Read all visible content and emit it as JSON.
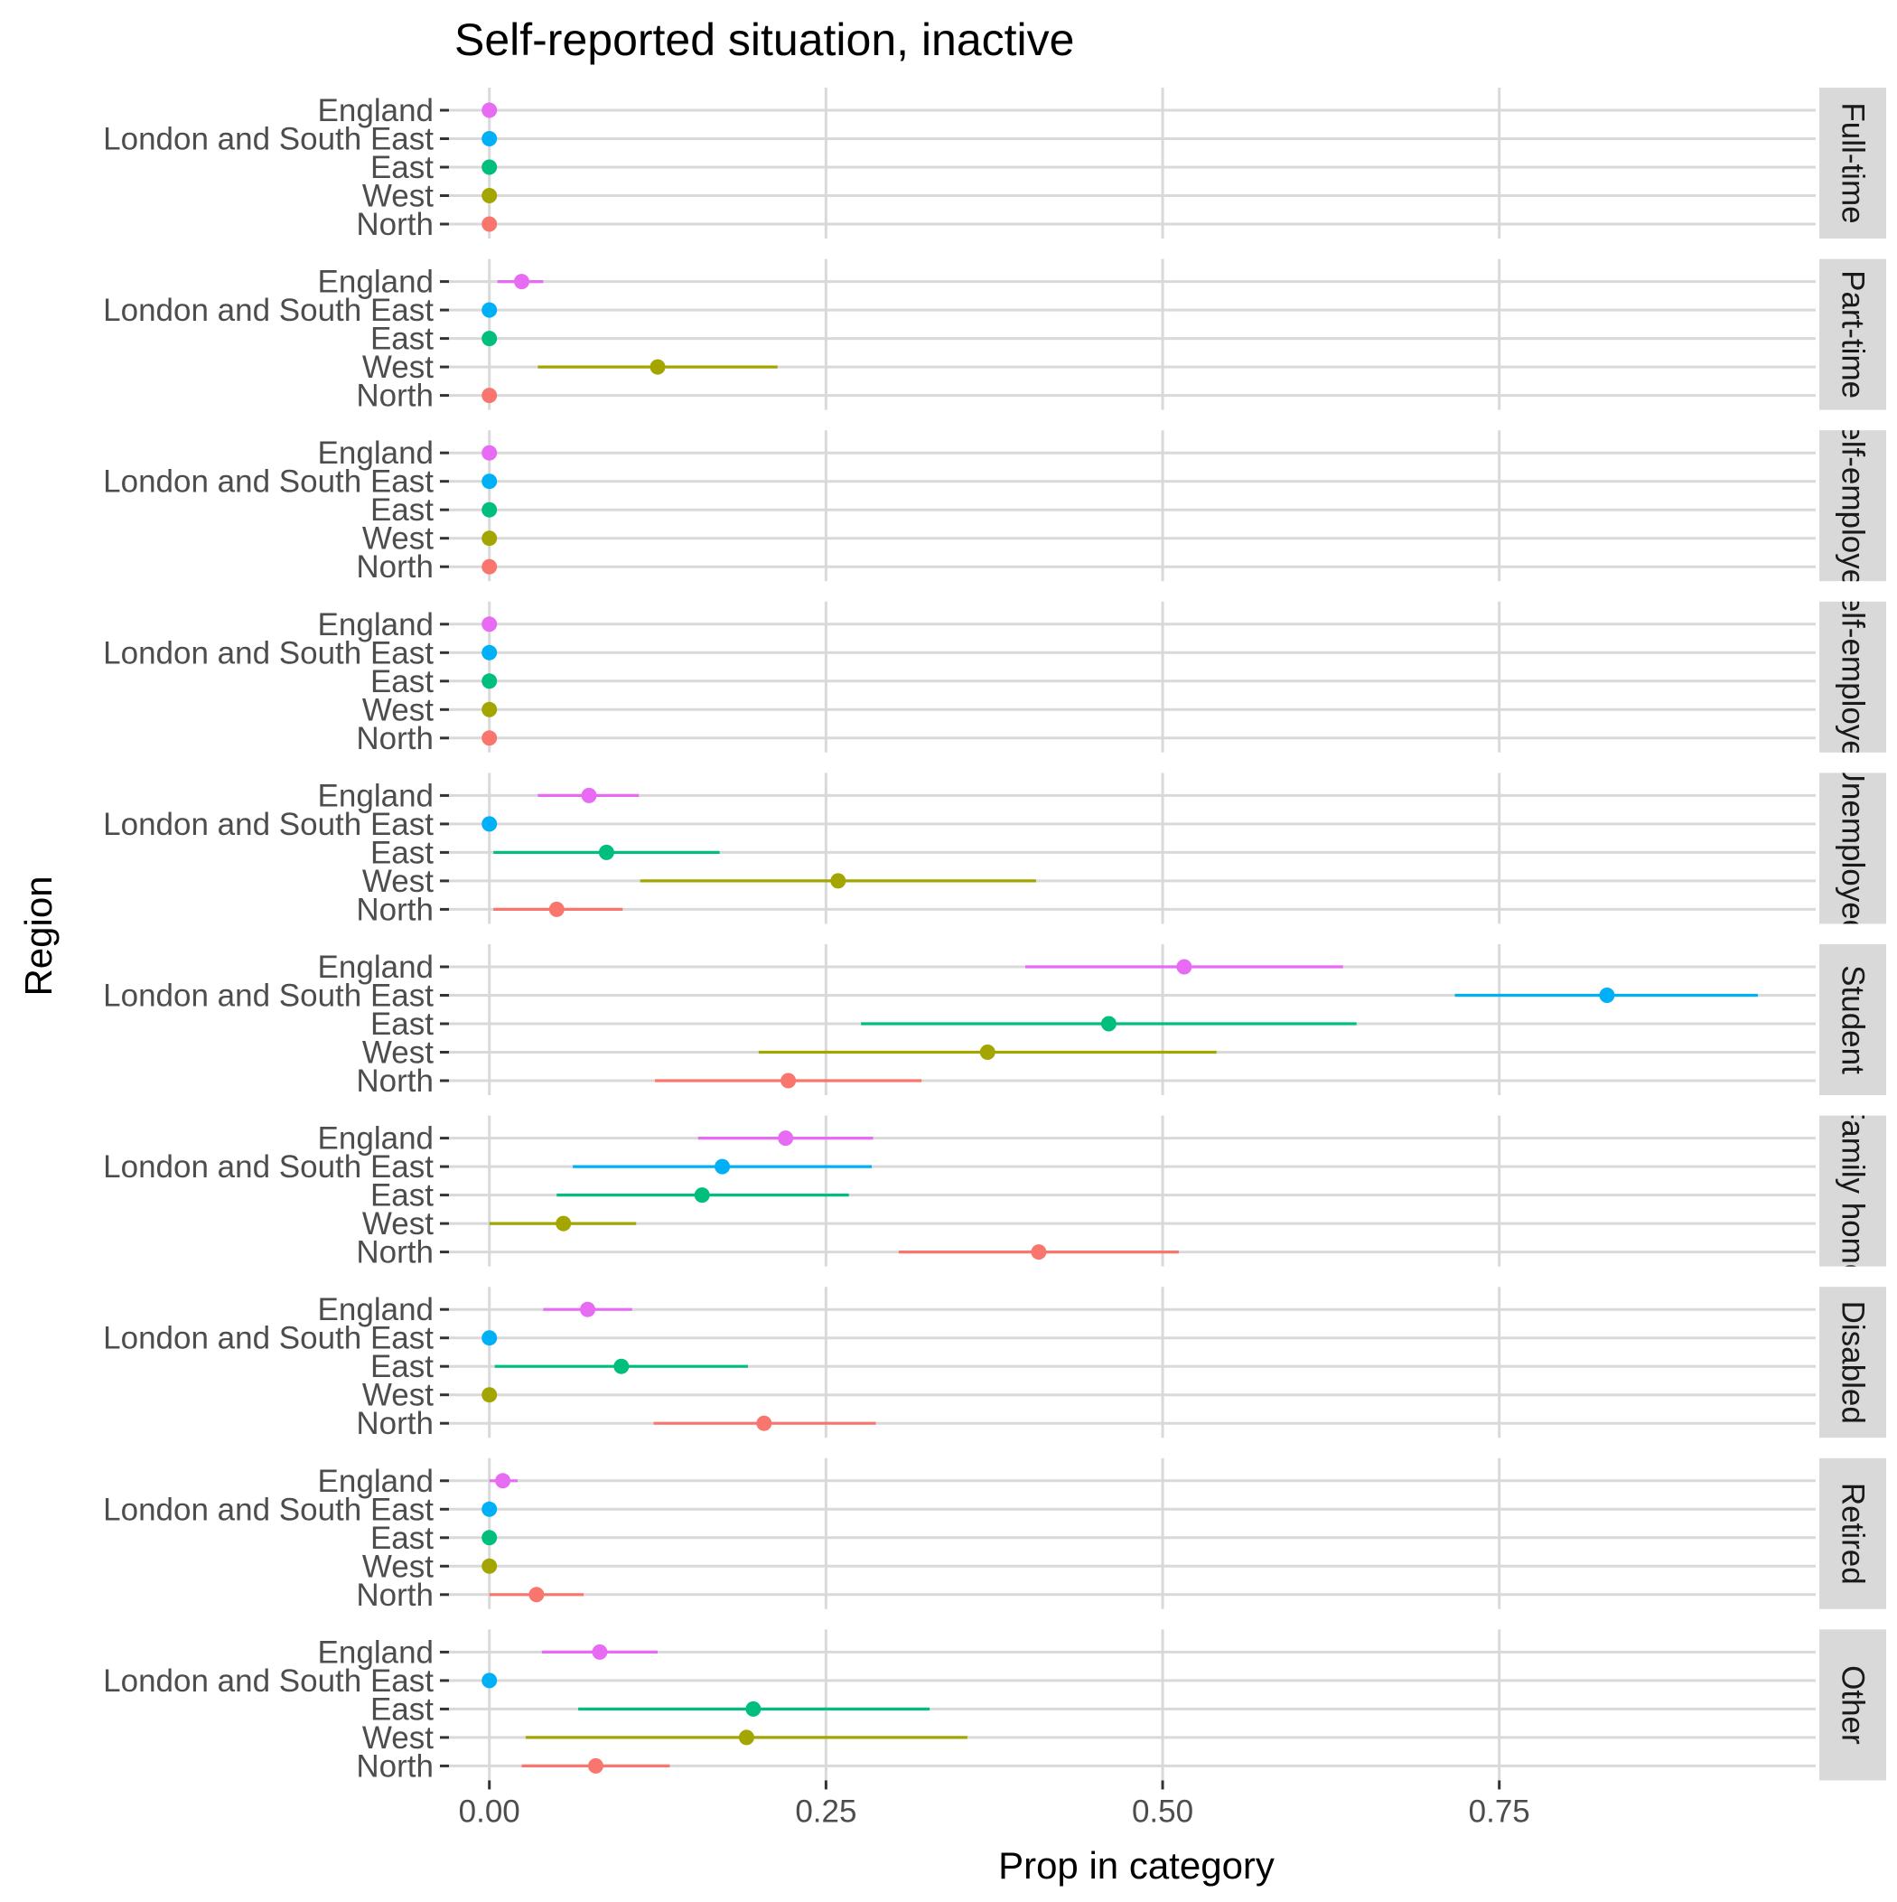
{
  "chart_data": {
    "type": "dot-errorbar",
    "title": "Self-reported situation, inactive",
    "xlabel": "Prop in category",
    "ylabel": "Region",
    "xlim": [
      -0.03,
      0.985
    ],
    "x_ticks": [
      0.0,
      0.25,
      0.5,
      0.75
    ],
    "x_tick_labels": [
      "0.00",
      "0.25",
      "0.50",
      "0.75"
    ],
    "grid": true,
    "legend": "none",
    "regions": [
      "England",
      "London and South East",
      "East",
      "West",
      "North"
    ],
    "colors": {
      "England": "#E76BF3",
      "London and South East": "#00B0F6",
      "East": "#00BF7D",
      "West": "#A3A500",
      "North": "#F8766D"
    },
    "panels": [
      {
        "label": "Full-time",
        "points": {
          "England": {
            "value": 0.0,
            "low": 0.0,
            "high": 0.0
          },
          "London and South East": {
            "value": 0.0,
            "low": 0.0,
            "high": 0.0
          },
          "East": {
            "value": 0.0,
            "low": 0.0,
            "high": 0.0
          },
          "West": {
            "value": 0.0,
            "low": 0.0,
            "high": 0.0
          },
          "North": {
            "value": 0.0,
            "low": 0.0,
            "high": 0.0
          }
        }
      },
      {
        "label": "Part-time",
        "points": {
          "England": {
            "value": 0.024,
            "low": 0.006,
            "high": 0.04
          },
          "London and South East": {
            "value": 0.0,
            "low": 0.0,
            "high": 0.0
          },
          "East": {
            "value": 0.0,
            "low": 0.0,
            "high": 0.0
          },
          "West": {
            "value": 0.125,
            "low": 0.036,
            "high": 0.214
          },
          "North": {
            "value": 0.0,
            "low": 0.0,
            "high": 0.0
          }
        }
      },
      {
        "label": "self-employed",
        "points": {
          "England": {
            "value": 0.0,
            "low": 0.0,
            "high": 0.0
          },
          "London and South East": {
            "value": 0.0,
            "low": 0.0,
            "high": 0.0
          },
          "East": {
            "value": 0.0,
            "low": 0.0,
            "high": 0.0
          },
          "West": {
            "value": 0.0,
            "low": 0.0,
            "high": 0.0
          },
          "North": {
            "value": 0.0,
            "low": 0.0,
            "high": 0.0
          }
        }
      },
      {
        "label": "self-employed",
        "points": {
          "England": {
            "value": 0.0,
            "low": 0.0,
            "high": 0.0
          },
          "London and South East": {
            "value": 0.0,
            "low": 0.0,
            "high": 0.0
          },
          "East": {
            "value": 0.0,
            "low": 0.0,
            "high": 0.0
          },
          "West": {
            "value": 0.0,
            "low": 0.0,
            "high": 0.0
          },
          "North": {
            "value": 0.0,
            "low": 0.0,
            "high": 0.0
          }
        }
      },
      {
        "label": "Unemployed",
        "points": {
          "England": {
            "value": 0.074,
            "low": 0.036,
            "high": 0.111
          },
          "London and South East": {
            "value": 0.0,
            "low": 0.0,
            "high": 0.0
          },
          "East": {
            "value": 0.087,
            "low": 0.003,
            "high": 0.171
          },
          "West": {
            "value": 0.259,
            "low": 0.112,
            "high": 0.406
          },
          "North": {
            "value": 0.05,
            "low": 0.003,
            "high": 0.099
          }
        }
      },
      {
        "label": "Student",
        "points": {
          "England": {
            "value": 0.516,
            "low": 0.398,
            "high": 0.634
          },
          "London and South East": {
            "value": 0.83,
            "low": 0.717,
            "high": 0.942
          },
          "East": {
            "value": 0.46,
            "low": 0.276,
            "high": 0.644
          },
          "West": {
            "value": 0.37,
            "low": 0.2,
            "high": 0.54
          },
          "North": {
            "value": 0.222,
            "low": 0.123,
            "high": 0.321
          }
        }
      },
      {
        "label": "Family home",
        "points": {
          "England": {
            "value": 0.22,
            "low": 0.155,
            "high": 0.285
          },
          "London and South East": {
            "value": 0.173,
            "low": 0.062,
            "high": 0.284
          },
          "East": {
            "value": 0.158,
            "low": 0.05,
            "high": 0.267
          },
          "West": {
            "value": 0.055,
            "low": 0.0,
            "high": 0.109
          },
          "North": {
            "value": 0.408,
            "low": 0.304,
            "high": 0.512
          }
        }
      },
      {
        "label": "Disabled",
        "points": {
          "England": {
            "value": 0.073,
            "low": 0.04,
            "high": 0.106
          },
          "London and South East": {
            "value": 0.0,
            "low": 0.0,
            "high": 0.0
          },
          "East": {
            "value": 0.098,
            "low": 0.004,
            "high": 0.192
          },
          "West": {
            "value": 0.0,
            "low": 0.0,
            "high": 0.0
          },
          "North": {
            "value": 0.204,
            "low": 0.122,
            "high": 0.287
          }
        }
      },
      {
        "label": "Retired",
        "points": {
          "England": {
            "value": 0.01,
            "low": 0.0,
            "high": 0.021
          },
          "London and South East": {
            "value": 0.0,
            "low": 0.0,
            "high": 0.0
          },
          "East": {
            "value": 0.0,
            "low": 0.0,
            "high": 0.0
          },
          "West": {
            "value": 0.0,
            "low": 0.0,
            "high": 0.0
          },
          "North": {
            "value": 0.035,
            "low": 0.0,
            "high": 0.07
          }
        }
      },
      {
        "label": "Other",
        "points": {
          "England": {
            "value": 0.082,
            "low": 0.039,
            "high": 0.125
          },
          "London and South East": {
            "value": 0.0,
            "low": 0.0,
            "high": 0.0
          },
          "East": {
            "value": 0.196,
            "low": 0.066,
            "high": 0.327
          },
          "West": {
            "value": 0.191,
            "low": 0.027,
            "high": 0.355
          },
          "North": {
            "value": 0.079,
            "low": 0.024,
            "high": 0.134
          }
        }
      }
    ]
  }
}
